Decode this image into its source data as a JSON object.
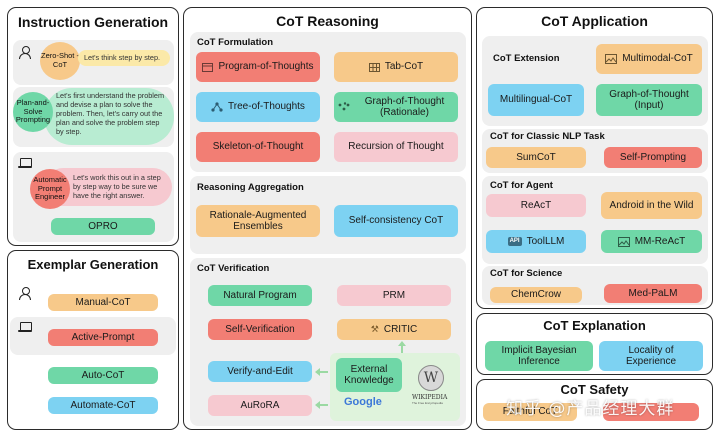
{
  "instruction_generation": {
    "title": "Instruction Generation",
    "zero_shot": {
      "label": "Zero-Shot -CoT",
      "text": "Let's think step by step."
    },
    "plan_and_solve": {
      "label": "Plan-and-Solve Prompting",
      "text": "Let's first understand the problem and devise a plan to solve the problem. Then, let's carry out the plan and solve the problem step by step."
    },
    "ape": {
      "label": "Automatic Prompt Engineer",
      "text": "Let's work this out in a step by step way to be sure we have the right answer."
    },
    "opro": "OPRO"
  },
  "exemplar_generation": {
    "title": "Exemplar Generation",
    "manual": "Manual-CoT",
    "active": "Active-Prompt",
    "auto": "Auto-CoT",
    "automate": "Automate-CoT"
  },
  "cot_reasoning": {
    "title": "CoT Reasoning",
    "formulation": {
      "title": "CoT Formulation",
      "program": "Program-of-Thoughts",
      "tab": "Tab-CoT",
      "tree": "Tree-of-Thoughts",
      "graph": "Graph-of-Thought (Rationale)",
      "skeleton": "Skeleton-of-Thought",
      "recursion": "Recursion of Thought"
    },
    "aggregation": {
      "title": "Reasoning Aggregation",
      "rationale": "Rationale-Augmented Ensembles",
      "self_consistency": "Self-consistency CoT"
    },
    "verification": {
      "title": "CoT Verification",
      "natural": "Natural Program",
      "prm": "PRM",
      "self_verification": "Self-Verification",
      "critic": "CRITIC",
      "verify_edit": "Verify-and-Edit",
      "external": "External Knowledge",
      "aurora": "AuRoRA",
      "google": "Google",
      "wikipedia": "WIKIPEDIA",
      "wikipedia_sub": "The Free Encyclopedia"
    }
  },
  "cot_application": {
    "title": "CoT Application",
    "extension": {
      "title": "CoT Extension",
      "multimodal": "Multimodal-CoT",
      "multilingual": "Multilingual-CoT",
      "graph_input": "Graph-of-Thought (Input)"
    },
    "classic_nlp": {
      "title": "CoT for Classic NLP Task",
      "sum": "SumCoT",
      "self_prompting": "Self-Prompting"
    },
    "agent": {
      "title": "CoT for Agent",
      "react": "ReAcT",
      "android": "Android in the Wild",
      "toolllm": "ToolLLM",
      "mm_react": "MM-ReAcT"
    },
    "science": {
      "title": "CoT for Science",
      "chemcrow": "ChemCrow",
      "medpalm": "Med-PaLM"
    }
  },
  "cot_explanation": {
    "title": "CoT Explanation",
    "bayesian": "Implicit Bayesian Inference",
    "locality": "Locality of Experience"
  },
  "cot_safety": {
    "title": "CoT Safety",
    "faithful": "Faithful CoT"
  },
  "watermark": "知乎 @产品经理大群",
  "colors": {
    "orange": "#f7c98a",
    "red": "#f27e74",
    "blue": "#7dd2f2",
    "green": "#6fd7a7",
    "pink": "#f6c9d0",
    "panel_bg": "#efefef"
  }
}
